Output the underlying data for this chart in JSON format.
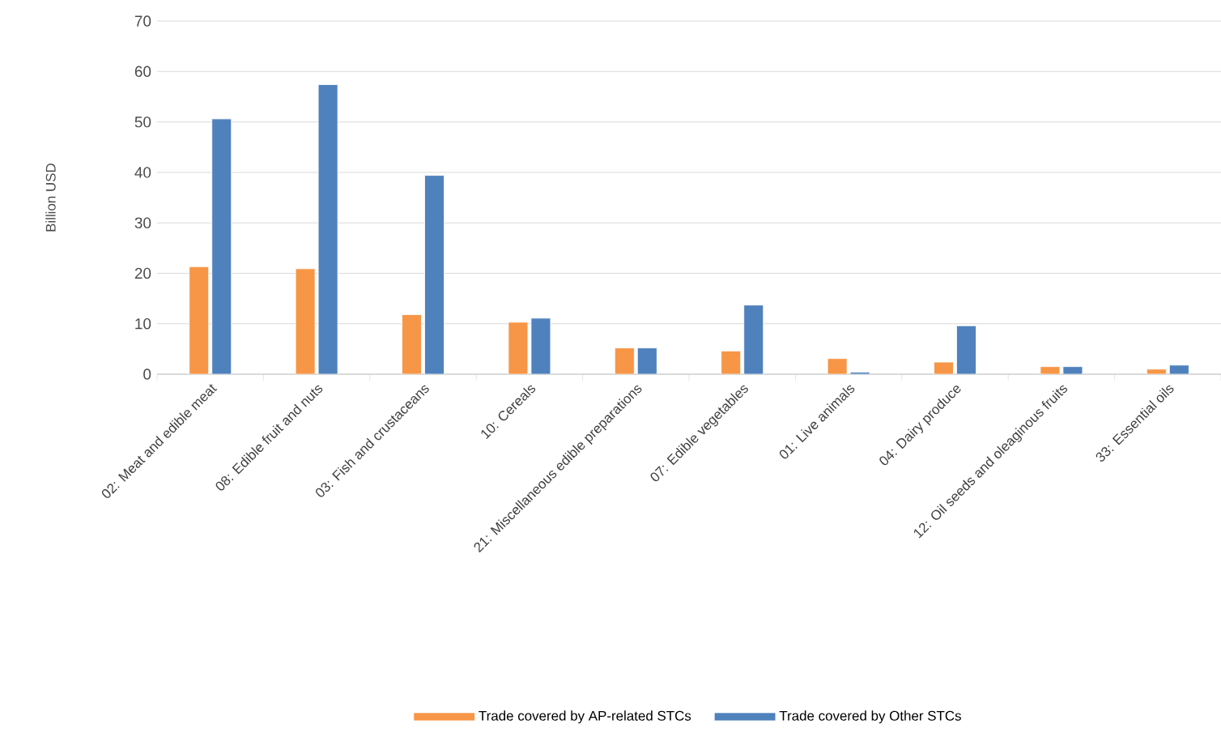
{
  "chart_data": {
    "type": "bar",
    "ylabel": "Billion USD",
    "categories": [
      "02: Meat and edible meat",
      "08: Edible fruit and nuts",
      "03: Fish and crustaceans",
      "10: Cereals",
      "21: Miscellaneous edible preparations",
      "07: Edible vegetables",
      "01: Live animals",
      "04: Dairy produce",
      "12: Oil seeds and oleaginous fruits",
      "33: Essential oils"
    ],
    "series": [
      {
        "name": "Trade covered by AP-related STCs",
        "color": "#f79646",
        "values": [
          21.3,
          20.9,
          11.8,
          10.3,
          5.2,
          4.6,
          3.1,
          2.4,
          1.5,
          1.0
        ]
      },
      {
        "name": "Trade covered by Other STCs",
        "color": "#4f81bd",
        "values": [
          50.6,
          57.4,
          39.4,
          11.1,
          5.2,
          13.7,
          0.4,
          9.6,
          1.5,
          1.8
        ]
      }
    ],
    "ylim": [
      0,
      70
    ],
    "yticks": [
      0,
      10,
      20,
      30,
      40,
      50,
      60,
      70
    ],
    "grid": "y",
    "legend": "bottom"
  }
}
